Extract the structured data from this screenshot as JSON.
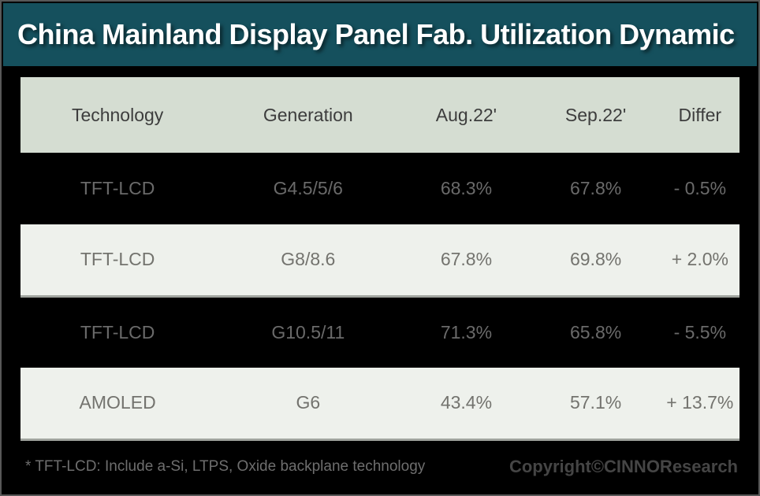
{
  "title": "China Mainland Display Panel Fab. Utilization Dynamic",
  "colors": {
    "accent": "#15505d",
    "header_bg": "#d5ddd2",
    "row_dark_bg": "#000000",
    "row_light_bg": "#eef1ec",
    "title_text": "#ffffff",
    "cell_text": "#6f6f6f"
  },
  "chart_data": {
    "type": "table",
    "title": "China Mainland Display Panel Fab. Utilization Dynamic",
    "columns": [
      "Technology",
      "Generation",
      "Aug.22'",
      "Sep.22'",
      "Differ"
    ],
    "rows": [
      [
        "TFT-LCD",
        "G4.5/5/6",
        "68.3%",
        "67.8%",
        "- 0.5%"
      ],
      [
        "TFT-LCD",
        "G8/8.6",
        "67.8%",
        "69.8%",
        "+ 2.0%"
      ],
      [
        "TFT-LCD",
        "G10.5/11",
        "71.3%",
        "65.8%",
        "- 5.5%"
      ],
      [
        "AMOLED",
        "G6",
        "43.4%",
        "57.1%",
        "+ 13.7%"
      ]
    ],
    "layout_hints": {
      "row_striping": [
        "dark",
        "light",
        "dark",
        "light"
      ],
      "alignment": "center"
    }
  },
  "footer": {
    "note": "* TFT-LCD: Include a-Si, LTPS, Oxide backplane technology",
    "copyright": "Copyright©CINNOResearch"
  }
}
